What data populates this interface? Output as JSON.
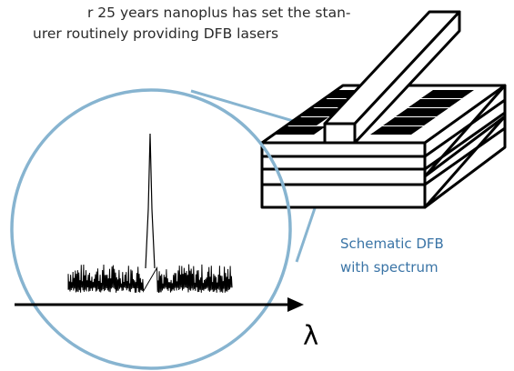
{
  "intro": {
    "line1": "r 25 years nanoplus has set the stan-",
    "line2": "urer routinely providing DFB lasers"
  },
  "caption": {
    "line1": "Schematic DFB",
    "line2": "with spectrum"
  },
  "axis": {
    "label": "λ"
  },
  "colors": {
    "accent": "#87b4d0",
    "caption": "#3a74a6",
    "line": "#000000"
  }
}
